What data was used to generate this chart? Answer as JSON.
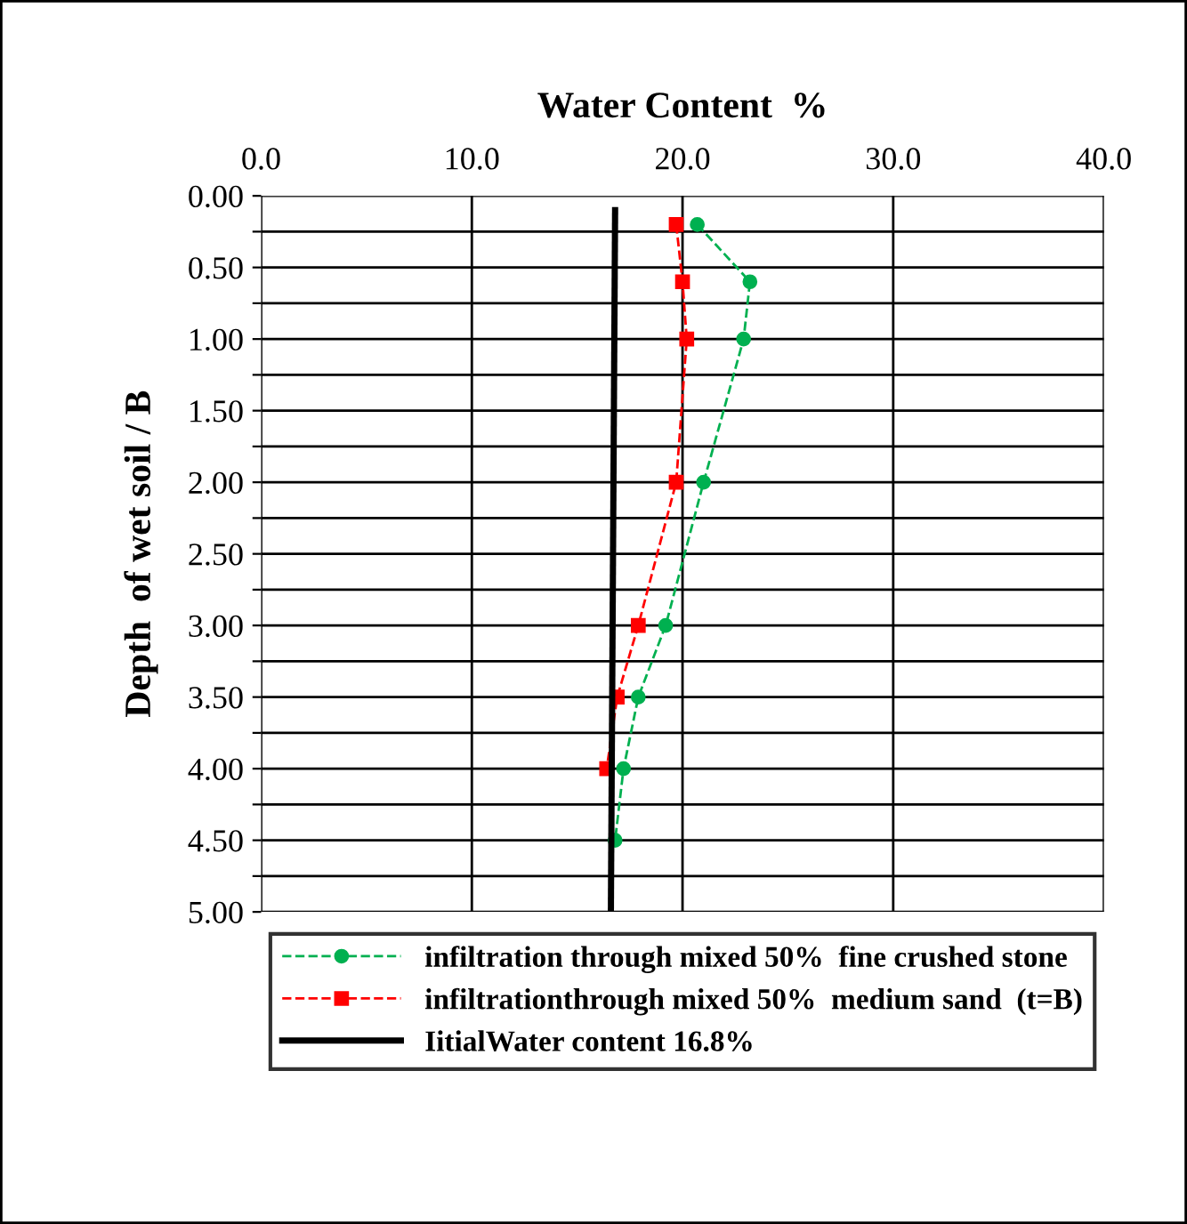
{
  "chart_data": {
    "type": "line",
    "xlabel": "Water Content  %",
    "ylabel": "Depth  of wet soil / B",
    "xlim": [
      0,
      40
    ],
    "xticks": [
      {
        "value": 0,
        "label": "0.0"
      },
      {
        "value": 10,
        "label": "10.0"
      },
      {
        "value": 20,
        "label": "20.0"
      },
      {
        "value": 30,
        "label": "30.0"
      },
      {
        "value": 40,
        "label": "40.0"
      }
    ],
    "ylim": [
      5,
      0
    ],
    "yticks": [
      {
        "value": 0,
        "label": "0.00"
      },
      {
        "value": 0.25,
        "label": null
      },
      {
        "value": 0.5,
        "label": "0.50"
      },
      {
        "value": 0.75,
        "label": null
      },
      {
        "value": 1,
        "label": "1.00"
      },
      {
        "value": 1.25,
        "label": null
      },
      {
        "value": 1.5,
        "label": "1.50"
      },
      {
        "value": 1.75,
        "label": null
      },
      {
        "value": 2,
        "label": "2.00"
      },
      {
        "value": 2.25,
        "label": null
      },
      {
        "value": 2.5,
        "label": "2.50"
      },
      {
        "value": 2.75,
        "label": null
      },
      {
        "value": 3,
        "label": "3.00"
      },
      {
        "value": 3.25,
        "label": null
      },
      {
        "value": 3.5,
        "label": "3.50"
      },
      {
        "value": 3.75,
        "label": null
      },
      {
        "value": 4,
        "label": "4.00"
      },
      {
        "value": 4.25,
        "label": null
      },
      {
        "value": 4.5,
        "label": "4.50"
      },
      {
        "value": 4.75,
        "label": null
      },
      {
        "value": 5,
        "label": "5.00"
      }
    ],
    "grid": true,
    "legend": "bottom",
    "series": [
      {
        "name": "infiltration through mixed 50%  fine crushed stone",
        "color": "#00b050",
        "marker": "circle",
        "line_style": "dashed",
        "x": [
          20.7,
          23.2,
          22.9,
          21.0,
          19.2,
          17.9,
          17.2,
          16.8
        ],
        "values": [
          0.2,
          0.6,
          1.0,
          2.0,
          3.0,
          3.5,
          4.0,
          4.5
        ]
      },
      {
        "name": "infiltrationthrough mixed 50%  medium sand  (t=B)",
        "color": "#ff0000",
        "marker": "square",
        "line_style": "dashed",
        "x": [
          19.7,
          20.0,
          20.2,
          19.7,
          17.9,
          16.9,
          16.4
        ],
        "values": [
          0.2,
          0.6,
          1.0,
          2.0,
          3.0,
          3.5,
          4.0
        ]
      },
      {
        "name": "IitialWater content 16.8%",
        "color": "#000000",
        "marker": "none",
        "line_style": "solid",
        "x": [
          16.8,
          16.6
        ],
        "values": [
          0.1,
          5.0
        ]
      }
    ]
  }
}
